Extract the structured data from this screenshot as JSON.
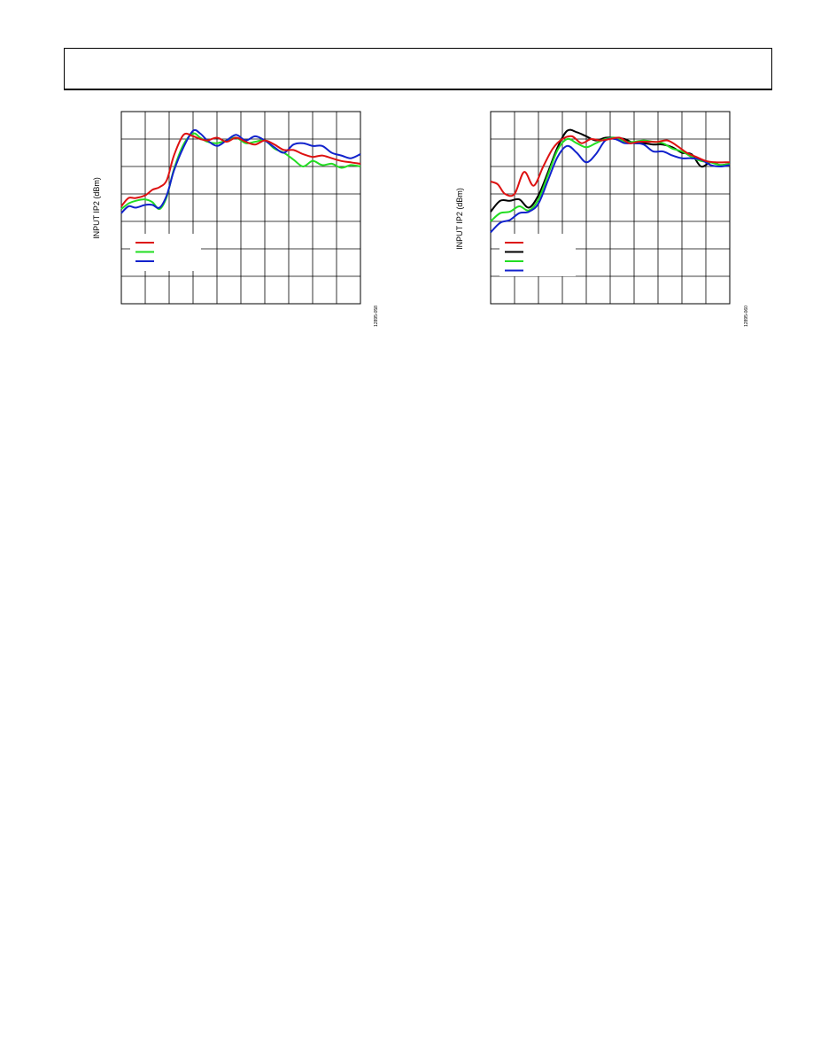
{
  "page": {
    "header_text": ""
  },
  "chart_data": [
    {
      "type": "line",
      "ylabel": "INPUT IP2 (dBm)",
      "xlabel": "",
      "figure_id": "12895-058",
      "grid": true,
      "x_divisions": 10,
      "y_divisions": 7,
      "xlim": [
        0,
        10
      ],
      "ylim": [
        0,
        7
      ],
      "legend": {
        "position": "lower-left",
        "entries": [
          "",
          "",
          ""
        ]
      },
      "series": [
        {
          "color": "#22dd22",
          "x": [
            0,
            0.3,
            0.6,
            1.0,
            1.3,
            1.6,
            1.9,
            2.2,
            2.6,
            3.0,
            3.3,
            3.6,
            4.0,
            4.4,
            4.8,
            5.2,
            5.6,
            6.0,
            6.4,
            6.8,
            7.2,
            7.6,
            8.0,
            8.4,
            8.8,
            9.2,
            9.6,
            10.0
          ],
          "y": [
            3.45,
            3.65,
            3.75,
            3.8,
            3.7,
            3.45,
            3.9,
            4.9,
            5.8,
            6.2,
            6.05,
            5.9,
            5.85,
            5.95,
            6.05,
            5.85,
            5.9,
            5.95,
            5.65,
            5.5,
            5.25,
            5.0,
            5.2,
            5.05,
            5.1,
            4.95,
            5.05,
            5.0
          ]
        },
        {
          "color": "#1122cc",
          "x": [
            0,
            0.3,
            0.6,
            1.0,
            1.3,
            1.6,
            1.9,
            2.2,
            2.6,
            3.0,
            3.3,
            3.6,
            4.0,
            4.4,
            4.8,
            5.2,
            5.6,
            6.0,
            6.4,
            6.8,
            7.2,
            7.6,
            8.0,
            8.4,
            8.8,
            9.2,
            9.6,
            10.0
          ],
          "y": [
            3.3,
            3.55,
            3.5,
            3.6,
            3.6,
            3.5,
            3.95,
            4.85,
            5.7,
            6.3,
            6.2,
            5.95,
            5.75,
            5.95,
            6.15,
            5.95,
            6.1,
            5.95,
            5.7,
            5.5,
            5.8,
            5.85,
            5.75,
            5.75,
            5.5,
            5.4,
            5.3,
            5.45
          ]
        },
        {
          "color": "#dd1111",
          "x": [
            0,
            0.3,
            0.6,
            1.0,
            1.3,
            1.6,
            1.9,
            2.2,
            2.6,
            3.0,
            3.3,
            3.6,
            4.0,
            4.4,
            4.8,
            5.2,
            5.6,
            6.0,
            6.4,
            6.8,
            7.2,
            7.6,
            8.0,
            8.4,
            8.8,
            9.2,
            9.6,
            10.0
          ],
          "y": [
            3.55,
            3.85,
            3.85,
            3.95,
            4.15,
            4.25,
            4.5,
            5.4,
            6.15,
            6.1,
            6.0,
            5.95,
            6.05,
            5.9,
            6.05,
            5.9,
            5.8,
            5.95,
            5.8,
            5.6,
            5.6,
            5.45,
            5.35,
            5.4,
            5.3,
            5.2,
            5.15,
            5.1
          ]
        }
      ]
    },
    {
      "type": "line",
      "ylabel": "INPUT IP2 (dBm)",
      "xlabel": "",
      "figure_id": "12895-060",
      "grid": true,
      "x_divisions": 10,
      "y_divisions": 7,
      "xlim": [
        0,
        10
      ],
      "ylim": [
        0,
        7
      ],
      "legend": {
        "position": "lower-left",
        "entries": [
          "",
          "",
          "",
          ""
        ]
      },
      "series": [
        {
          "color": "#000000",
          "x": [
            0,
            0.4,
            0.8,
            1.2,
            1.6,
            2.0,
            2.4,
            2.8,
            3.2,
            3.6,
            4.0,
            4.4,
            4.8,
            5.2,
            5.6,
            6.0,
            6.4,
            6.8,
            7.2,
            7.6,
            8.0,
            8.4,
            8.8,
            9.2,
            9.6,
            10.0
          ],
          "y": [
            3.35,
            3.75,
            3.75,
            3.8,
            3.5,
            3.95,
            4.8,
            5.7,
            6.3,
            6.25,
            6.1,
            5.95,
            6.05,
            6.05,
            6.0,
            5.85,
            5.85,
            5.8,
            5.8,
            5.7,
            5.5,
            5.45,
            5.0,
            5.15,
            5.05,
            5.1
          ]
        },
        {
          "color": "#22dd22",
          "x": [
            0,
            0.4,
            0.8,
            1.2,
            1.6,
            2.0,
            2.4,
            2.8,
            3.2,
            3.6,
            4.0,
            4.4,
            4.8,
            5.2,
            5.6,
            6.0,
            6.4,
            6.8,
            7.2,
            7.6,
            8.0,
            8.4,
            8.8,
            9.2,
            9.6,
            10.0
          ],
          "y": [
            3.0,
            3.3,
            3.35,
            3.55,
            3.4,
            3.8,
            4.7,
            5.6,
            6.0,
            5.85,
            5.7,
            5.85,
            6.0,
            6.05,
            5.9,
            5.9,
            5.95,
            5.9,
            5.85,
            5.65,
            5.55,
            5.35,
            5.2,
            5.15,
            5.05,
            5.1
          ]
        },
        {
          "color": "#1122cc",
          "x": [
            0,
            0.4,
            0.8,
            1.2,
            1.6,
            2.0,
            2.4,
            2.8,
            3.2,
            3.6,
            4.0,
            4.4,
            4.8,
            5.2,
            5.6,
            6.0,
            6.4,
            6.8,
            7.2,
            7.6,
            8.0,
            8.4,
            8.8,
            9.2,
            9.6,
            10.0
          ],
          "y": [
            2.6,
            2.95,
            3.05,
            3.3,
            3.35,
            3.65,
            4.5,
            5.35,
            5.75,
            5.5,
            5.15,
            5.45,
            5.95,
            6.0,
            5.85,
            5.85,
            5.8,
            5.55,
            5.55,
            5.4,
            5.3,
            5.3,
            5.25,
            5.05,
            5.0,
            5.05
          ]
        },
        {
          "color": "#dd1111",
          "x": [
            0,
            0.3,
            0.6,
            1.0,
            1.4,
            1.8,
            2.2,
            2.6,
            3.0,
            3.4,
            3.8,
            4.2,
            4.6,
            5.0,
            5.4,
            5.8,
            6.2,
            6.6,
            7.0,
            7.4,
            7.8,
            8.2,
            8.6,
            9.0,
            9.4,
            9.8,
            10.0
          ],
          "y": [
            4.45,
            4.35,
            4.0,
            4.0,
            4.8,
            4.3,
            5.0,
            5.65,
            6.0,
            6.1,
            5.85,
            6.0,
            5.95,
            6.0,
            6.05,
            5.85,
            5.9,
            5.9,
            5.9,
            5.95,
            5.75,
            5.5,
            5.35,
            5.2,
            5.15,
            5.15,
            5.15
          ]
        }
      ]
    }
  ]
}
